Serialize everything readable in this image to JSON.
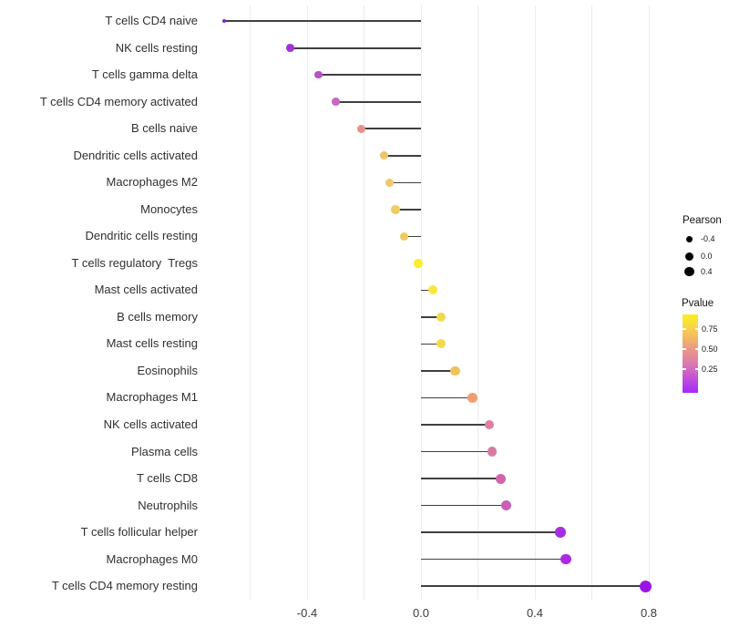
{
  "chart_data": {
    "type": "scatter",
    "subtype": "lollipop",
    "orientation": "horizontal",
    "title": "",
    "xlabel": "",
    "ylabel": "",
    "grid": "vertical-only",
    "background": "#ffffff",
    "gridline_color": "#ececec",
    "stem_color": "#3f3f3f",
    "x_ticks": [
      "-0.4",
      "0.0",
      "0.4",
      "0.8"
    ],
    "x_tick_values": [
      -0.4,
      0.0,
      0.4,
      0.8
    ],
    "xlim": [
      -0.77,
      0.87
    ],
    "gridline_values": [
      -0.6,
      -0.4,
      -0.2,
      0.0,
      0.2,
      0.4,
      0.6,
      0.8
    ],
    "rows": [
      {
        "label": "T cells CD4 naive",
        "pearson": -0.69,
        "color": "#7f22d9",
        "radius": 2.0
      },
      {
        "label": "NK cells resting",
        "pearson": -0.46,
        "color": "#a033d6",
        "radius": 4.4
      },
      {
        "label": "T cells gamma delta",
        "pearson": -0.36,
        "color": "#bb4ec9",
        "radius": 4.2
      },
      {
        "label": "T cells CD4 memory activated",
        "pearson": -0.3,
        "color": "#c968c0",
        "radius": 4.3
      },
      {
        "label": "B cells naive",
        "pearson": -0.21,
        "color": "#e5908a",
        "radius": 4.5
      },
      {
        "label": "Dendritic cells activated",
        "pearson": -0.13,
        "color": "#efc36a",
        "radius": 4.6
      },
      {
        "label": "Macrophages M2",
        "pearson": -0.11,
        "color": "#eec76b",
        "radius": 4.6
      },
      {
        "label": "Monocytes",
        "pearson": -0.09,
        "color": "#f0ca62",
        "radius": 4.7
      },
      {
        "label": "Dendritic cells resting",
        "pearson": -0.06,
        "color": "#eecb5f",
        "radius": 4.7
      },
      {
        "label": "T cells regulatory  Tregs",
        "pearson": -0.01,
        "color": "#faee2d",
        "radius": 4.8
      },
      {
        "label": "Mast cells activated",
        "pearson": 0.04,
        "color": "#f8e73b",
        "radius": 5.0
      },
      {
        "label": "B cells memory",
        "pearson": 0.07,
        "color": "#f3da4b",
        "radius": 5.0
      },
      {
        "label": "Mast cells resting",
        "pearson": 0.07,
        "color": "#f3da4b",
        "radius": 5.0
      },
      {
        "label": "Eosinophils",
        "pearson": 0.12,
        "color": "#f0c25c",
        "radius": 5.2
      },
      {
        "label": "Macrophages M1",
        "pearson": 0.18,
        "color": "#ee9e72",
        "radius": 5.3
      },
      {
        "label": "NK cells activated",
        "pearson": 0.24,
        "color": "#dd7f9e",
        "radius": 5.3
      },
      {
        "label": "Plasma cells",
        "pearson": 0.25,
        "color": "#d97ba0",
        "radius": 5.3
      },
      {
        "label": "T cells CD8",
        "pearson": 0.28,
        "color": "#d264ae",
        "radius": 5.5
      },
      {
        "label": "Neutrophils",
        "pearson": 0.3,
        "color": "#ca5fb7",
        "radius": 5.5
      },
      {
        "label": "T cells follicular helper",
        "pearson": 0.49,
        "color": "#a52fe0",
        "radius": 5.8
      },
      {
        "label": "Macrophages M0",
        "pearson": 0.51,
        "color": "#aa2ae6",
        "radius": 5.9
      },
      {
        "label": "T cells CD4 memory resting",
        "pearson": 0.79,
        "color": "#9b16e4",
        "radius": 6.6
      }
    ],
    "legends": {
      "size": {
        "title": "Pearson",
        "dot_color": "#000000",
        "entries": [
          {
            "label": "-0.4",
            "diameter": 7
          },
          {
            "label": "0.0",
            "diameter": 9
          },
          {
            "label": "0.4",
            "diameter": 10.5
          }
        ]
      },
      "color": {
        "title": "Pvalue",
        "tick_labels": [
          "0.75",
          "0.50",
          "0.25"
        ],
        "gradient_stops": [
          "#f9ef1e 0%",
          "#f8dd3f 12%",
          "#f2b369 32%",
          "#ea9589 46%",
          "#dd7bab 62%",
          "#c858d2 78%",
          "#b13bee 91%",
          "#a829f6 100%"
        ]
      }
    }
  }
}
